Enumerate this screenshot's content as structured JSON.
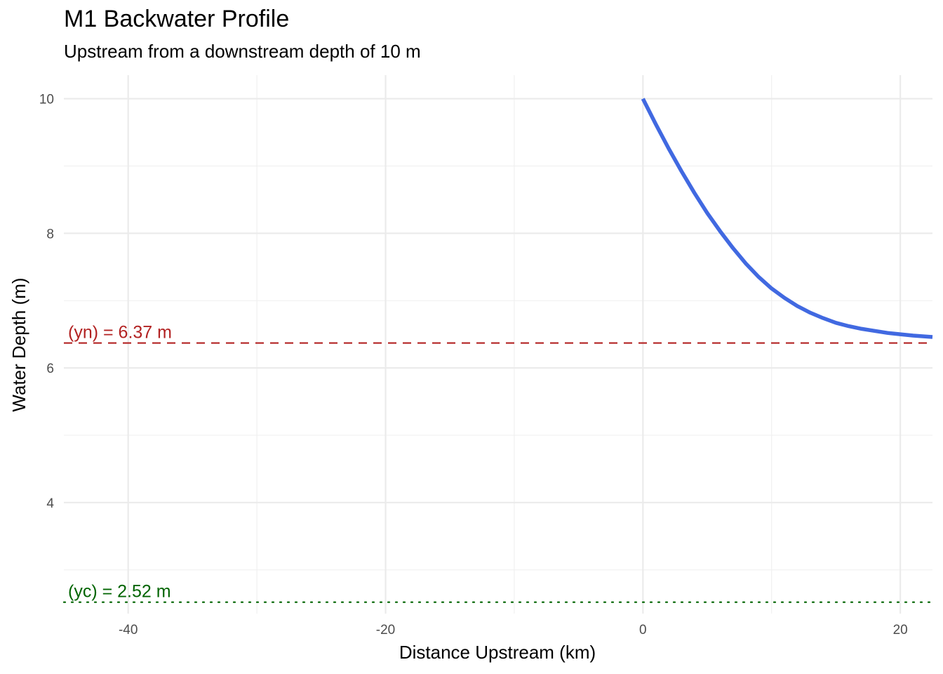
{
  "chart_data": {
    "type": "line",
    "title": "M1 Backwater Profile",
    "subtitle": "Upstream from a downstream depth of 10 m",
    "xlabel": "Distance Upstream (km)",
    "ylabel": "Water Depth (m)",
    "xlim": [
      -45,
      22.5
    ],
    "ylim": [
      2.35,
      10.35
    ],
    "x_ticks": [
      -40,
      -20,
      0,
      20
    ],
    "y_ticks": [
      4,
      6,
      8,
      10
    ],
    "grid": true,
    "series": [
      {
        "color": "#4169E1",
        "x": [
          0,
          1,
          2,
          3,
          4,
          5,
          6,
          7,
          8,
          9,
          10,
          11,
          12,
          13,
          14,
          15,
          16,
          17,
          18,
          19,
          20,
          21,
          22.5
        ],
        "y": [
          10.0,
          9.62,
          9.26,
          8.92,
          8.6,
          8.3,
          8.03,
          7.78,
          7.55,
          7.35,
          7.18,
          7.04,
          6.92,
          6.82,
          6.74,
          6.67,
          6.62,
          6.58,
          6.55,
          6.52,
          6.5,
          6.48,
          6.46
        ]
      }
    ],
    "annotations": [
      {
        "label": "(yn) = 6.37 m",
        "y": 6.37,
        "color": "#B22222",
        "linetype": "dashed"
      },
      {
        "label": "(yc) = 2.52 m",
        "y": 2.52,
        "color": "#006400",
        "linetype": "dotted"
      }
    ]
  }
}
